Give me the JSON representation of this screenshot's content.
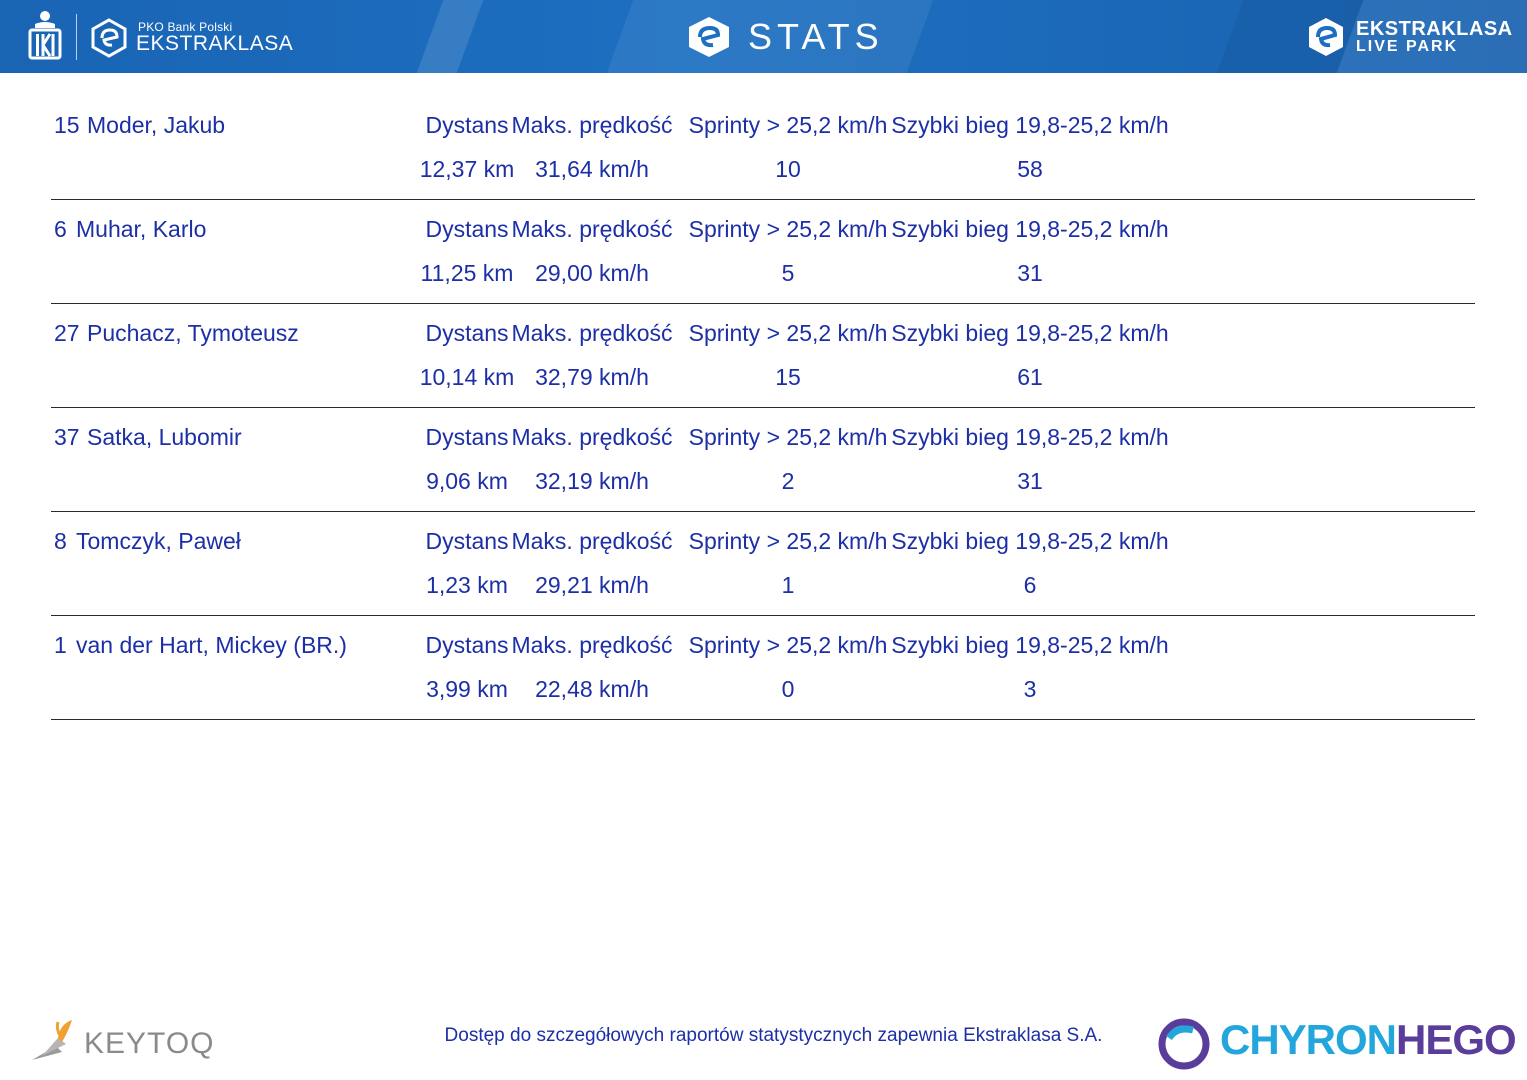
{
  "header": {
    "brand_small": "PKO Bank Polski",
    "brand_big": "EKSTRAKLASA",
    "title": "STATS",
    "right_brand_line1": "EKSTRAKLASA",
    "right_brand_line2": "LIVE PARK"
  },
  "columns": {
    "distance": "Dystans",
    "max_speed": "Maks. prędkość",
    "sprints": "Sprinty > 25,2 km/h",
    "fast_runs": "Szybki bieg 19,8-25,2 km/h"
  },
  "players": [
    {
      "number": "15",
      "name": "Moder, Jakub",
      "distance": "12,37 km",
      "max_speed": "31,64 km/h",
      "sprints": "10",
      "fast_runs": "58"
    },
    {
      "number": "6",
      "name": "Muhar, Karlo",
      "distance": "11,25 km",
      "max_speed": "29,00 km/h",
      "sprints": "5",
      "fast_runs": "31"
    },
    {
      "number": "27",
      "name": "Puchacz, Tymoteusz",
      "distance": "10,14 km",
      "max_speed": "32,79 km/h",
      "sprints": "15",
      "fast_runs": "61"
    },
    {
      "number": "37",
      "name": "Satka, Lubomir",
      "distance": "9,06 km",
      "max_speed": "32,19 km/h",
      "sprints": "2",
      "fast_runs": "31"
    },
    {
      "number": "8",
      "name": "Tomczyk, Paweł",
      "distance": "1,23 km",
      "max_speed": "29,21 km/h",
      "sprints": "1",
      "fast_runs": "6"
    },
    {
      "number": "1",
      "name": "van der Hart, Mickey (BR.)",
      "distance": "3,99 km",
      "max_speed": "22,48 km/h",
      "sprints": "0",
      "fast_runs": "3"
    }
  ],
  "footer": {
    "keytoq": "KEYTOQ",
    "note": "Dostęp do szczegółowych raportów statystycznych zapewnia Ekstraklasa S.A.",
    "chyron": "CHYRON",
    "hego": "HEGO"
  },
  "colors": {
    "header_blue": "#1d6fc1",
    "text_blue": "#1c2fa6",
    "chyron_cyan": "#23a6dc",
    "hego_purple": "#5a3d9a"
  }
}
